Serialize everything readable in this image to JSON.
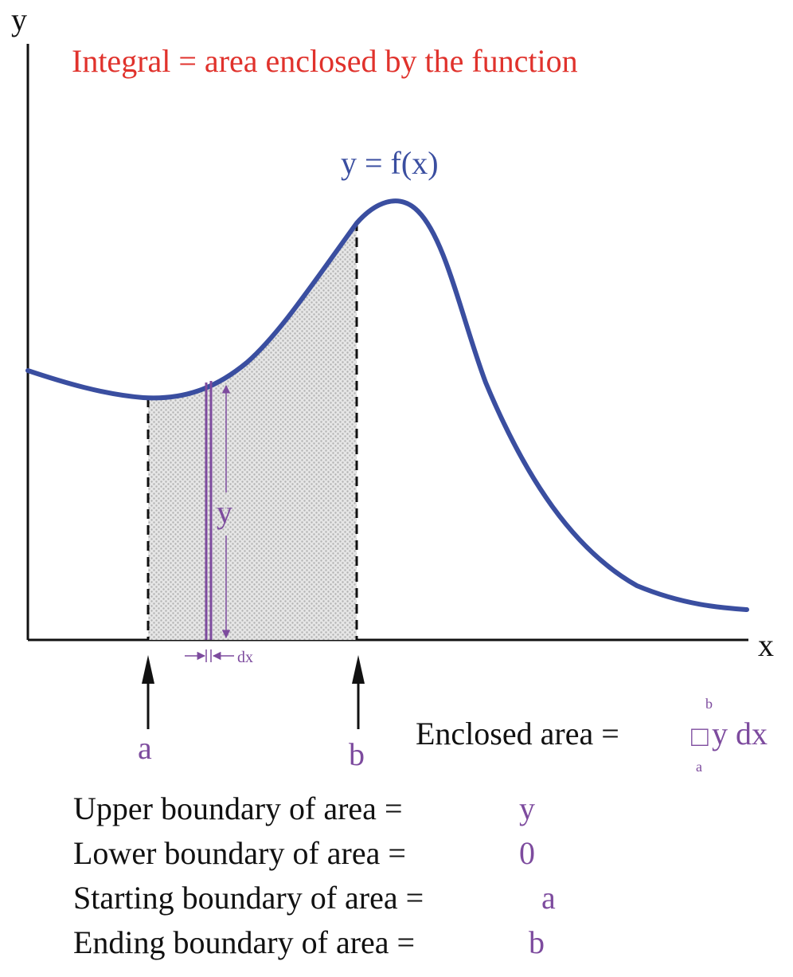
{
  "title": "Integral = area enclosed by the function",
  "axes": {
    "y_label": "y",
    "x_label": "x"
  },
  "curve": {
    "label": "y = f(x)"
  },
  "strip": {
    "height_label": "y",
    "width_label": "dx"
  },
  "markers": {
    "a": "a",
    "b": "b"
  },
  "formula": {
    "lhs": "Enclosed area =",
    "upper_limit": "b",
    "lower_limit": "a",
    "integral_symbol": "□",
    "integrand": "y dx"
  },
  "boundaries": [
    {
      "label": "Upper boundary of area =",
      "value": "y"
    },
    {
      "label": "Lower boundary of area =",
      "value": "0"
    },
    {
      "label": "Starting boundary of area =",
      "value": "a"
    },
    {
      "label": "Ending boundary of area =",
      "value": "b"
    }
  ],
  "colors": {
    "curve": "#3a4ea0",
    "title": "#e0322c",
    "accent": "#7d4b9e",
    "shade": "#c8c8c8"
  }
}
